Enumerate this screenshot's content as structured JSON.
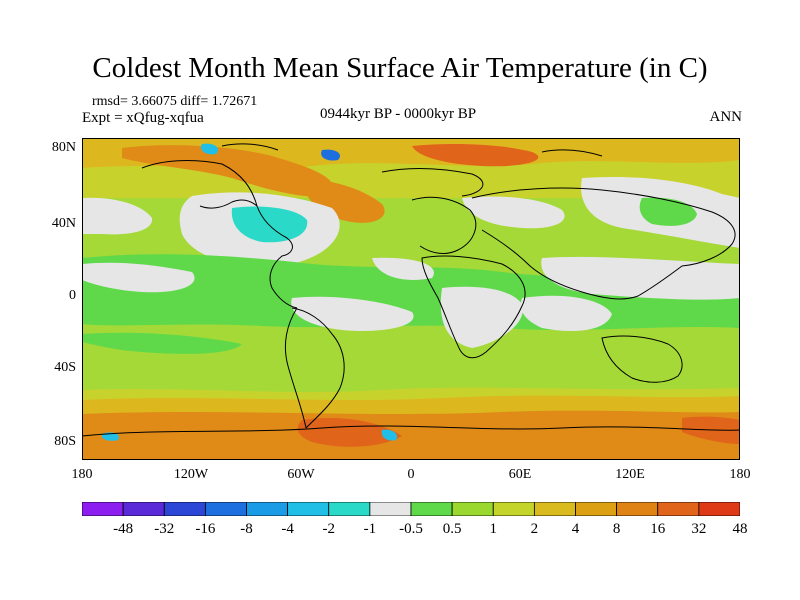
{
  "title": "Coldest Month Mean Surface Air Temperature (in C)",
  "stats_line": "rmsd= 3.66075 diff= 1.72671",
  "experiment": "Expt = xQfug-xqfua",
  "period": "0944kyr BP - 0000kyr BP",
  "season": "ANN",
  "y_ticks": [
    "80N",
    "40N",
    "0",
    "40S",
    "80S"
  ],
  "x_ticks": [
    "180",
    "120W",
    "60W",
    "0",
    "60E",
    "120E",
    "180"
  ],
  "colorbar": {
    "colors": [
      "#8c1ff0",
      "#5a2ad9",
      "#2c46d6",
      "#1d6fe0",
      "#1a9be6",
      "#21bfe6",
      "#2bd9c9",
      "#e6e6e6",
      "#5fd94a",
      "#9ad82f",
      "#c4d42a",
      "#d9bb1f",
      "#dca014",
      "#e08315",
      "#e0641a",
      "#df3a18"
    ],
    "labels": [
      "-48",
      "-32",
      "-16",
      "-8",
      "-4",
      "-2",
      "-1",
      "-0.5",
      "0.5",
      "1",
      "2",
      "4",
      "8",
      "16",
      "32",
      "48"
    ]
  },
  "map_colors": {
    "base_green": "#a4d937",
    "light_green": "#5fd94a",
    "yellow": "#c8d22c",
    "gold": "#dcb81e",
    "orange": "#e08a18",
    "red_orange": "#e0641a",
    "grey": "#e6e6e6",
    "cyan": "#21bfe6",
    "blue": "#1d6fe0"
  }
}
